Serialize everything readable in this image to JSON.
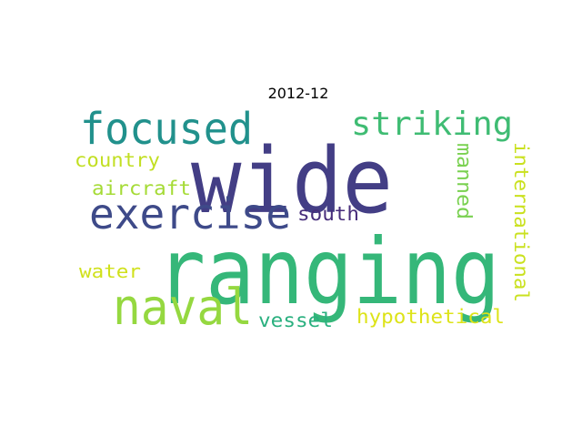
{
  "title": "2012-12",
  "words": [
    {
      "text": "ranging",
      "color": "#35b779"
    },
    {
      "text": "wide",
      "color": "#433e85"
    },
    {
      "text": "focused",
      "color": "#21918c"
    },
    {
      "text": "exercise",
      "color": "#3e4a89"
    },
    {
      "text": "naval",
      "color": "#95d840"
    },
    {
      "text": "striking",
      "color": "#3fbc73"
    },
    {
      "text": "country",
      "color": "#c2df23"
    },
    {
      "text": "aircraft",
      "color": "#a5db36"
    },
    {
      "text": "south",
      "color": "#472d7b"
    },
    {
      "text": "water",
      "color": "#d0e11c"
    },
    {
      "text": "vessel",
      "color": "#2ab07f"
    },
    {
      "text": "hypothetical",
      "color": "#dde318"
    },
    {
      "text": "manned",
      "color": "#7ad151"
    },
    {
      "text": "international",
      "color": "#cae11f"
    },
    {
      "text": "",
      "color": "#20a486"
    }
  ]
}
